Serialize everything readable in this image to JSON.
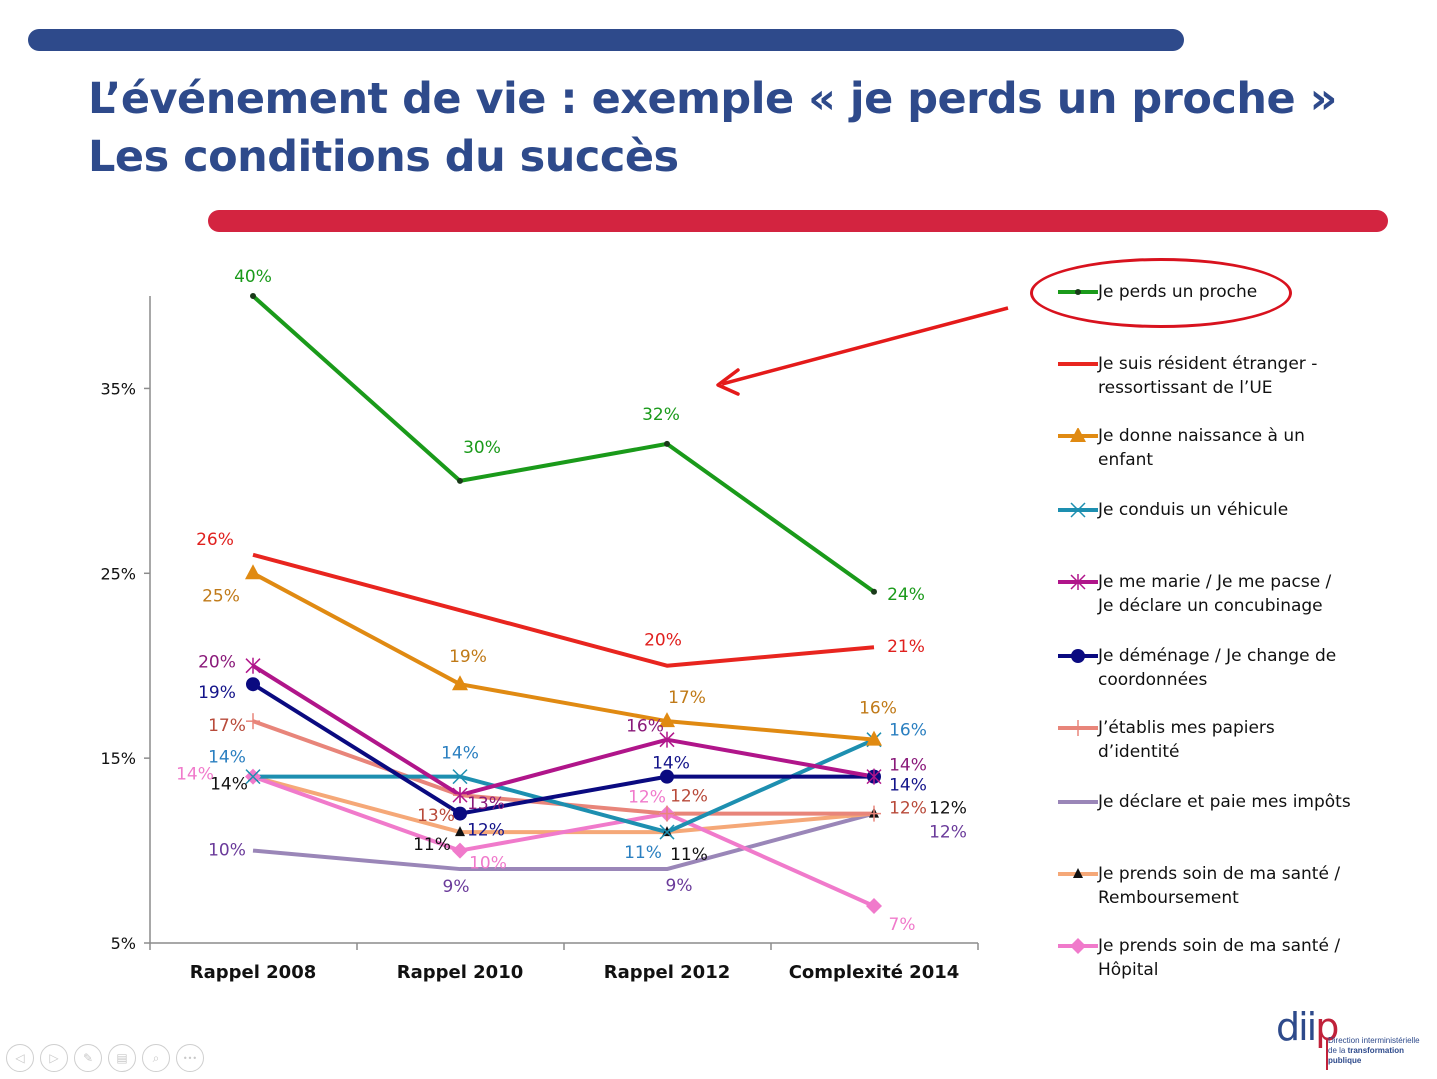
{
  "slide": {
    "title_line1": "L’événement de vie : exemple « je perds un proche »",
    "title_line2": "Les conditions du succès",
    "accent_blue": "#2e4a8b",
    "accent_red": "#d32440"
  },
  "chart_data": {
    "type": "line",
    "title": "",
    "xlabel": "",
    "ylabel": "",
    "categories": [
      "Rappel 2008",
      "Rappel 2010",
      "Rappel 2012",
      "Complexité 2014"
    ],
    "ylim": [
      5,
      40
    ],
    "yticks": [
      5,
      15,
      25,
      35
    ],
    "ytick_labels": [
      "5%",
      "15%",
      "25%",
      "35%"
    ],
    "grid": false,
    "legend_position": "right",
    "highlighted_series": "Je perds un proche",
    "series": [
      {
        "name": "Je perds un proche",
        "color": "#1a9a1a",
        "label_color": "#1a9a1a",
        "marker": "dot",
        "values": [
          40,
          30,
          32,
          24
        ],
        "labels": [
          "40%",
          "30%",
          "32%",
          "24%"
        ]
      },
      {
        "name": "Je suis résident étranger -\nressortissant de l’UE",
        "color": "#e8251f",
        "label_color": "#e0201e",
        "marker": "none",
        "values": [
          26,
          null,
          20,
          21
        ],
        "labels": [
          "26%",
          "",
          "20%",
          "21%"
        ]
      },
      {
        "name": "Je donne naissance à un\nenfant",
        "color": "#e08a12",
        "label_color": "#c07a18",
        "marker": "triangle",
        "values": [
          25,
          19,
          17,
          16
        ],
        "labels": [
          "25%",
          "19%",
          "17%",
          "16%"
        ]
      },
      {
        "name": "Je conduis un véhicule",
        "color": "#1d8fb0",
        "label_color": "#2a7fc0",
        "marker": "x",
        "values": [
          14,
          14,
          11,
          16
        ],
        "labels": [
          "14%",
          "14%",
          "11%",
          "16%"
        ]
      },
      {
        "name": "Je me marie / Je me pacse /\nJe déclare un concubinage",
        "color": "#b0158a",
        "label_color": "#8a1a7a",
        "marker": "star",
        "values": [
          20,
          13,
          16,
          14
        ],
        "labels": [
          "20%",
          "13%",
          "16%",
          "14%"
        ]
      },
      {
        "name": "Je déménage / Je change de\ncoordonnées",
        "color": "#0a0a80",
        "label_color": "#14148a",
        "marker": "circle",
        "values": [
          19,
          12,
          14,
          14
        ],
        "labels": [
          "19%",
          "12%",
          "14%",
          "14%"
        ]
      },
      {
        "name": "J’établis mes papiers\nd’identité",
        "color": "#e8857a",
        "label_color": "#b84a3a",
        "marker": "plus",
        "values": [
          17,
          13,
          12,
          12
        ],
        "labels": [
          "17%",
          "13%",
          "12%",
          "12%"
        ]
      },
      {
        "name": "Je déclare et paie mes impôts",
        "color": "#9a86b8",
        "label_color": "#6a3a9a",
        "marker": "none",
        "values": [
          10,
          9,
          9,
          12
        ],
        "labels": [
          "10%",
          "9%",
          "9%",
          "12%"
        ]
      },
      {
        "name": "Je prends soin de ma santé /\nRemboursement",
        "color": "#f5a878",
        "label_color": "#111111",
        "marker": "black-triangle",
        "values": [
          14,
          11,
          11,
          12
        ],
        "labels": [
          "14%",
          "11%",
          "11%",
          "12%"
        ]
      },
      {
        "name": "Je prends soin de ma santé /\nHôpital",
        "color": "#f07acb",
        "label_color": "#f07acb",
        "marker": "diamond",
        "values": [
          14,
          10,
          12,
          7
        ],
        "labels": [
          "14%",
          "10%",
          "12%",
          "7%"
        ]
      }
    ]
  },
  "logo": {
    "mark": "dii",
    "mark_p": "p",
    "line1": "Direction interministérielle",
    "line2_prefix": "de la ",
    "line2_bold": "transformation",
    "line3": "publique"
  },
  "nav": {
    "prev_icon": "◁",
    "next_icon": "▷",
    "pen_icon": "✎",
    "slides_icon": "▤",
    "zoom_icon": "⌕",
    "more_icon": "•••"
  }
}
